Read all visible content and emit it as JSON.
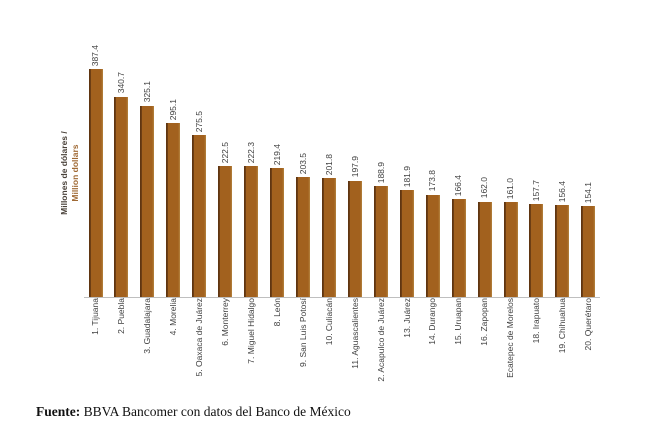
{
  "chart_data": {
    "type": "bar",
    "title": "",
    "ylabel_line1": "Millones de dólares /",
    "ylabel_line2": "Million dollars",
    "categories": [
      "1. Tijuana",
      "2. Puebla",
      "3. Guadalajara",
      "4. Morelia",
      "5. Oaxaca de Juárez",
      "6. Monterrey",
      "7. Miguel Hidalgo",
      "8. León",
      "9. San Luis Potosí",
      "10. Culiacán",
      "11. Aguascalientes",
      "2. Acapulco de Juárez",
      "13. Juárez",
      "14. Durango",
      "15. Uruapan",
      "16. Zapopan",
      "Ecatepec de Morelos",
      "18. Irapuato",
      "19. Chihuahua",
      "20. Querétaro"
    ],
    "values": [
      387.4,
      340.7,
      325.1,
      295.1,
      275.5,
      222.5,
      222.3,
      219.4,
      203.5,
      201.8,
      197.9,
      188.9,
      181.9,
      173.8,
      166.4,
      162.0,
      161.0,
      157.7,
      156.4,
      154.1
    ],
    "value_labels": [
      "387.4",
      "340.7",
      "325.1",
      "295.1",
      "275.5",
      "222.5",
      "222.3",
      "219.4",
      "203.5",
      "201.8",
      "197.9",
      "188.9",
      "181.9",
      "173.8",
      "166.4",
      "162.0",
      "161.0",
      "157.7",
      "156.4",
      "154.1"
    ],
    "ylim": [
      0,
      400
    ],
    "grid": false,
    "legend": "none",
    "bar_color": "#a2611e",
    "bar_edge_dark": "#5f3511",
    "bar_edge_light": "#b5843f",
    "axis_line_color": "#bfbfbf",
    "label_color": "#3f3f3f",
    "ylabel_color_line1": "#4a423a",
    "ylabel_color_line2": "#a06a35"
  },
  "footer": {
    "source_label": "Fuente:",
    "source_text": "BBVA Bancomer con datos del Banco de México"
  }
}
